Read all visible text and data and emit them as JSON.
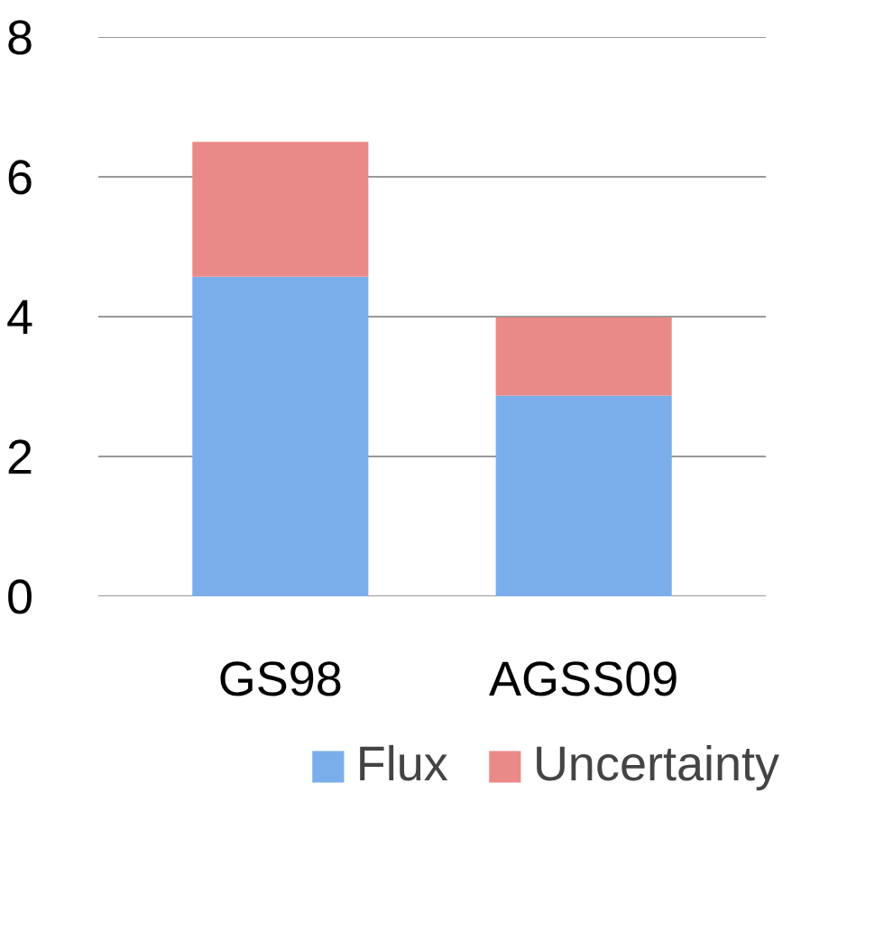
{
  "chart_data": {
    "type": "bar",
    "stacked": true,
    "categories": [
      "GS98",
      "AGSS09"
    ],
    "series": [
      {
        "name": "Flux",
        "color": "#79aeea",
        "values": [
          4.57,
          2.87
        ]
      },
      {
        "name": "Uncertainty",
        "color": "#ea8a88",
        "values": [
          1.93,
          1.12
        ]
      }
    ],
    "ylim": [
      0,
      8
    ],
    "yticks": [
      0,
      2,
      4,
      6,
      8
    ],
    "grid": "y",
    "legend": "bottom"
  }
}
